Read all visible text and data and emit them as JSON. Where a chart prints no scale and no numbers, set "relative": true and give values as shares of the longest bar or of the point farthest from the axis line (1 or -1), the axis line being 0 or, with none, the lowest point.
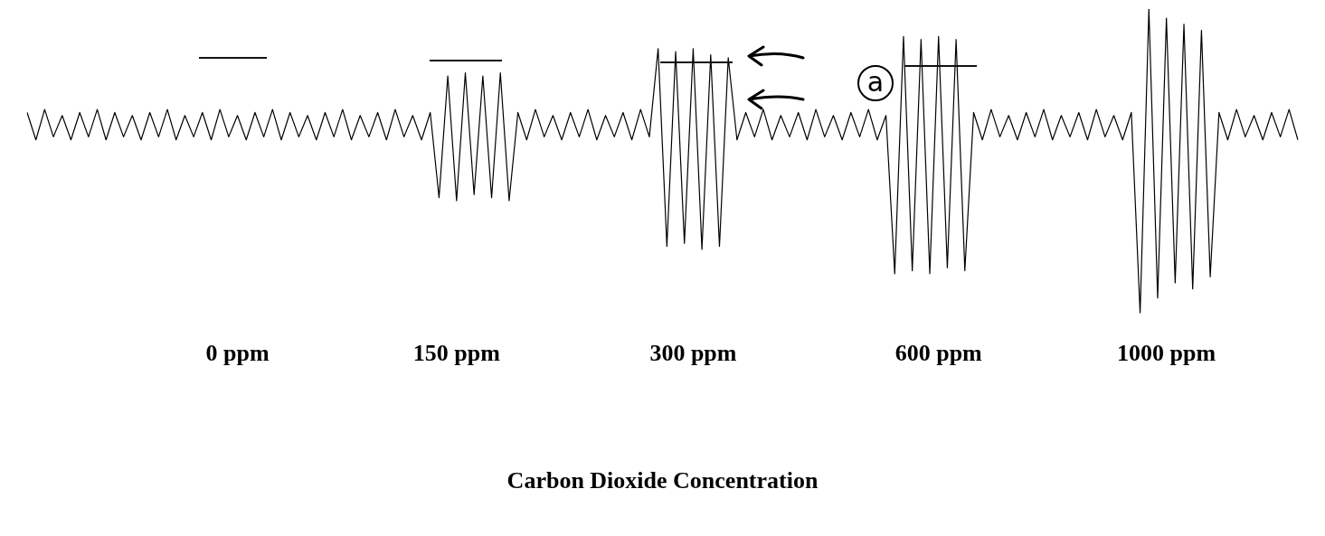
{
  "chart_data": {
    "type": "line",
    "relative": true,
    "xlabel": "Carbon Dioxide Concentration",
    "color": "#000000",
    "marker": "none",
    "grid": false,
    "legend": false,
    "annotations": [
      "a"
    ],
    "categories": [
      null,
      null,
      null,
      null,
      null,
      null,
      null,
      null,
      null,
      null,
      null,
      null,
      null,
      null,
      null,
      null,
      null,
      null,
      null,
      null,
      null,
      null,
      null,
      null,
      "0 ppm",
      null,
      null,
      null,
      null,
      null,
      null,
      null,
      null,
      null,
      null,
      null,
      null,
      null,
      null,
      null,
      null,
      null,
      null,
      null,
      null,
      null,
      null,
      null,
      null,
      "150 ppm",
      null,
      null,
      null,
      null,
      null,
      null,
      null,
      null,
      null,
      null,
      null,
      null,
      null,
      null,
      null,
      null,
      null,
      null,
      null,
      null,
      null,
      null,
      null,
      null,
      null,
      null,
      "300 ppm",
      null,
      null,
      null,
      null,
      null,
      null,
      null,
      null,
      null,
      null,
      null,
      null,
      null,
      null,
      null,
      null,
      null,
      null,
      null,
      null,
      null,
      null,
      null,
      null,
      null,
      null,
      null,
      "600 ppm",
      null,
      null,
      null,
      null,
      null,
      null,
      null,
      null,
      null,
      null,
      null,
      null,
      null,
      null,
      null,
      null,
      null,
      null,
      null,
      null,
      null,
      null,
      null,
      null,
      null,
      "1000 ppm",
      null,
      null,
      null,
      null,
      null,
      null,
      null,
      null,
      null,
      null,
      null,
      null,
      null,
      null,
      null
    ],
    "values": [
      0.66,
      0.57,
      0.67,
      0.58,
      0.65,
      0.57,
      0.66,
      0.58,
      0.67,
      0.57,
      0.66,
      0.58,
      0.65,
      0.57,
      0.66,
      0.58,
      0.67,
      0.57,
      0.65,
      0.58,
      0.66,
      0.57,
      0.67,
      0.58,
      0.65,
      0.57,
      0.66,
      0.58,
      0.67,
      0.57,
      0.66,
      0.58,
      0.65,
      0.57,
      0.66,
      0.58,
      0.67,
      0.57,
      0.65,
      0.58,
      0.66,
      0.57,
      0.67,
      0.58,
      0.65,
      0.57,
      0.66,
      0.38,
      0.78,
      0.37,
      0.79,
      0.39,
      0.78,
      0.38,
      0.79,
      0.37,
      0.66,
      0.57,
      0.67,
      0.58,
      0.65,
      0.57,
      0.66,
      0.58,
      0.67,
      0.57,
      0.65,
      0.58,
      0.66,
      0.57,
      0.67,
      0.58,
      0.87,
      0.22,
      0.86,
      0.23,
      0.87,
      0.21,
      0.85,
      0.22,
      0.84,
      0.57,
      0.66,
      0.58,
      0.67,
      0.57,
      0.65,
      0.58,
      0.66,
      0.57,
      0.67,
      0.58,
      0.65,
      0.57,
      0.66,
      0.58,
      0.67,
      0.57,
      0.65,
      0.13,
      0.91,
      0.14,
      0.9,
      0.13,
      0.91,
      0.15,
      0.9,
      0.14,
      0.66,
      0.57,
      0.67,
      0.58,
      0.65,
      0.57,
      0.66,
      0.58,
      0.67,
      0.57,
      0.65,
      0.58,
      0.66,
      0.57,
      0.67,
      0.58,
      0.65,
      0.57,
      0.66,
      0.0,
      1.0,
      0.05,
      0.97,
      0.1,
      0.95,
      0.08,
      0.93,
      0.12,
      0.66,
      0.57,
      0.67,
      0.58,
      0.65,
      0.57,
      0.66,
      0.58,
      0.67,
      0.57
    ]
  }
}
